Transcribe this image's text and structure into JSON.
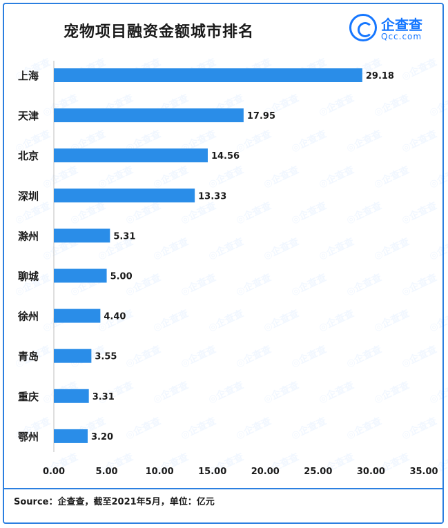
{
  "brand": {
    "name_cn": "企查查",
    "name_en": "Qcc.com"
  },
  "source_text": "Source：企查查，截至2021年5月，单位：亿元",
  "colors": {
    "bar": "#2a8de8",
    "frame": "#2b7fe0",
    "logo": "#1677ff"
  },
  "chart_data": {
    "type": "bar",
    "orientation": "horizontal",
    "title": "宠物项目融资金额城市排名",
    "categories": [
      "上海",
      "天津",
      "北京",
      "深圳",
      "滁州",
      "聊城",
      "徐州",
      "青岛",
      "重庆",
      "鄂州"
    ],
    "values": [
      29.18,
      17.95,
      14.56,
      13.33,
      5.31,
      5.0,
      4.4,
      3.55,
      3.31,
      3.2
    ],
    "value_labels": [
      "29.18",
      "17.95",
      "14.56",
      "13.33",
      "5.31",
      "5.00",
      "4.40",
      "3.55",
      "3.31",
      "3.20"
    ],
    "x_ticks": [
      "0.00",
      "5.00",
      "10.00",
      "15.00",
      "20.00",
      "25.00",
      "30.00",
      "35.00"
    ],
    "xlim": [
      0,
      35
    ],
    "grid": false,
    "legend": "none",
    "xlabel": "",
    "ylabel": ""
  }
}
